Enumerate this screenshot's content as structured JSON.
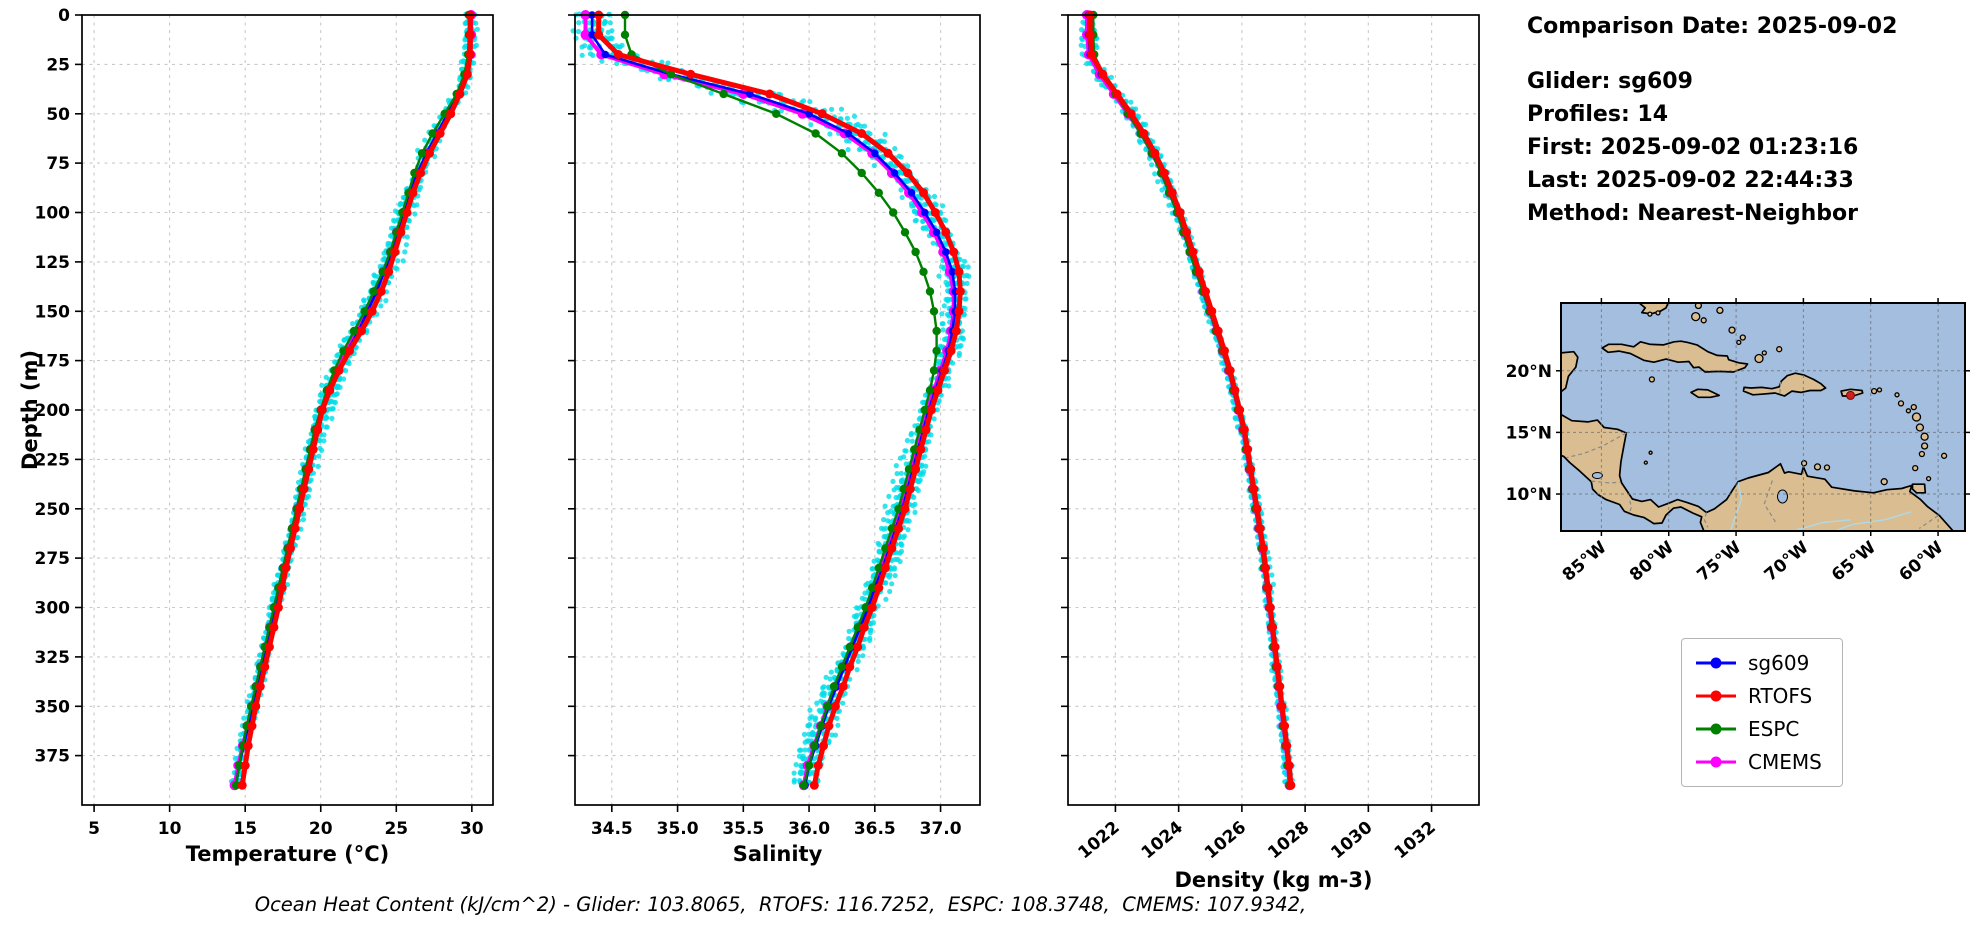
{
  "info_panel": {
    "comparison_date": "Comparison Date: 2025-09-02",
    "glider": "Glider: sg609",
    "profiles": "Profiles: 14",
    "first": "First: 2025-09-02 01:23:16",
    "last": "Last: 2025-09-02 22:44:33",
    "method": "Method: Nearest-Neighbor"
  },
  "caption": {
    "text": "Ocean Heat Content (kJ/cm^2) - Glider: 103.8065,  RTOFS: 116.7252,  ESPC: 108.3748,  CMEMS: 107.9342,"
  },
  "legend": {
    "items": [
      {
        "label": "sg609",
        "color": "#0000ff"
      },
      {
        "label": "RTOFS",
        "color": "#ff0000"
      },
      {
        "label": "ESPC",
        "color": "#008000"
      },
      {
        "label": "CMEMS",
        "color": "#ff00ff"
      }
    ]
  },
  "map": {
    "extent": {
      "lon": [
        -88,
        -58
      ],
      "lat": [
        7,
        25.5
      ]
    },
    "lat_ticks": [
      {
        "value": 20,
        "label": "20°N"
      },
      {
        "value": 15,
        "label": "15°N"
      },
      {
        "value": 10,
        "label": "10°N"
      }
    ],
    "lon_ticks": [
      {
        "value": -85,
        "label": "85°W"
      },
      {
        "value": -80,
        "label": "80°W"
      },
      {
        "value": -75,
        "label": "75°W"
      },
      {
        "value": -70,
        "label": "70°W"
      },
      {
        "value": -65,
        "label": "65°W"
      },
      {
        "value": -60,
        "label": "60°W"
      }
    ],
    "colors": {
      "ocean": "#a3bedf",
      "land": "#dabe92",
      "coast": "#000000",
      "grid": "#6e6e6e"
    },
    "marker": {
      "lon": -66.5,
      "lat": 18.0,
      "color": "#cc2222"
    }
  },
  "chart_data": {
    "type": "line",
    "orientation": "depth-profile",
    "ylabel": "Depth (m)",
    "ylim": [
      0,
      400
    ],
    "depth_ticks": [
      0,
      25,
      50,
      75,
      100,
      125,
      150,
      175,
      200,
      225,
      250,
      275,
      300,
      325,
      350,
      375
    ],
    "depths": [
      0,
      10,
      20,
      30,
      40,
      50,
      60,
      70,
      80,
      90,
      100,
      110,
      120,
      130,
      140,
      150,
      160,
      170,
      180,
      190,
      200,
      210,
      220,
      230,
      240,
      250,
      260,
      270,
      280,
      290,
      300,
      310,
      320,
      330,
      340,
      350,
      360,
      370,
      380,
      390
    ],
    "panels": [
      {
        "id": "temperature",
        "xlabel": "Temperature (°C)",
        "xlim": [
          4.2,
          31.4
        ],
        "x_ticks": [
          5,
          10,
          15,
          20,
          25,
          30
        ],
        "tick_labels": [
          "5",
          "10",
          "15",
          "20",
          "25",
          "30"
        ],
        "rotate_ticks": false,
        "scatter": {
          "color": "#00dde8",
          "amplitude": 0.55,
          "peak_depth": 130,
          "peak_width": 90,
          "peak_gain": 0.9
        },
        "series": [
          {
            "name": "sg609",
            "color": "#0000ff",
            "lw": 2.6,
            "ms": 3.8,
            "values": [
              29.9,
              29.9,
              29.85,
              29.6,
              29.1,
              28.4,
              27.7,
              27.0,
              26.4,
              25.9,
              25.5,
              25.1,
              24.7,
              24.2,
              23.7,
              23.1,
              22.5,
              21.8,
              21.2,
              20.6,
              20.1,
              19.7,
              19.4,
              19.1,
              18.8,
              18.5,
              18.2,
              17.9,
              17.6,
              17.3,
              17.0,
              16.7,
              16.4,
              16.1,
              15.8,
              15.5,
              15.2,
              14.9,
              14.6,
              14.4
            ]
          },
          {
            "name": "RTOFS",
            "color": "#ff0000",
            "lw": 5,
            "ms": 4.5,
            "values": [
              29.9,
              29.9,
              29.9,
              29.7,
              29.2,
              28.6,
              27.9,
              27.2,
              26.6,
              26.1,
              25.7,
              25.3,
              24.9,
              24.5,
              24.0,
              23.4,
              22.7,
              21.9,
              21.2,
              20.6,
              20.1,
              19.8,
              19.5,
              19.2,
              18.9,
              18.6,
              18.3,
              18.0,
              17.7,
              17.45,
              17.2,
              16.9,
              16.6,
              16.3,
              16.0,
              15.7,
              15.45,
              15.2,
              15.0,
              14.8
            ]
          },
          {
            "name": "ESPC",
            "color": "#008000",
            "lw": 2.4,
            "ms": 4.2,
            "values": [
              29.8,
              29.8,
              29.75,
              29.5,
              29.0,
              28.2,
              27.4,
              26.7,
              26.2,
              25.8,
              25.4,
              25.0,
              24.6,
              24.1,
              23.5,
              22.9,
              22.2,
              21.5,
              20.9,
              20.4,
              20.0,
              19.6,
              19.3,
              19.0,
              18.7,
              18.4,
              18.1,
              17.8,
              17.5,
              17.2,
              16.9,
              16.6,
              16.3,
              16.0,
              15.7,
              15.4,
              15.1,
              14.85,
              14.6,
              14.4
            ]
          },
          {
            "name": "CMEMS",
            "color": "#ff00ff",
            "lw": 4,
            "ms": 5,
            "values": [
              29.95,
              29.95,
              29.9,
              29.65,
              29.15,
              28.45,
              27.75,
              27.05,
              26.45,
              25.95,
              25.5,
              25.05,
              24.65,
              24.15,
              23.65,
              23.05,
              22.4,
              21.7,
              21.1,
              20.5,
              20.05,
              19.65,
              19.35,
              19.05,
              18.75,
              18.45,
              18.15,
              17.85,
              17.55,
              17.25,
              16.95,
              16.65,
              16.35,
              16.05,
              15.75,
              15.45,
              15.15,
              14.85,
              14.55,
              14.3
            ]
          }
        ]
      },
      {
        "id": "salinity",
        "xlabel": "Salinity",
        "xlim": [
          34.22,
          37.3
        ],
        "x_ticks": [
          34.5,
          35.0,
          35.5,
          36.0,
          36.5,
          37.0
        ],
        "tick_labels": [
          "34.5",
          "35.0",
          "35.5",
          "36.0",
          "36.5",
          "37.0"
        ],
        "rotate_ticks": false,
        "scatter": {
          "color": "#00dde8",
          "amplitude": 0.16,
          "peak_depth": 40,
          "peak_width": 28,
          "peak_gain": 2.6
        },
        "series": [
          {
            "name": "sg609",
            "color": "#0000ff",
            "lw": 2.6,
            "ms": 3.8,
            "values": [
              34.35,
              34.35,
              34.45,
              34.95,
              35.55,
              36.0,
              36.3,
              36.5,
              36.65,
              36.78,
              36.88,
              36.97,
              37.04,
              37.09,
              37.11,
              37.11,
              37.09,
              37.06,
              37.01,
              36.96,
              36.91,
              36.87,
              36.83,
              36.79,
              36.75,
              36.71,
              36.66,
              36.61,
              36.56,
              36.5,
              36.45,
              36.39,
              36.33,
              36.27,
              36.21,
              36.15,
              36.1,
              36.05,
              36.0,
              35.97
            ]
          },
          {
            "name": "RTOFS",
            "color": "#ff0000",
            "lw": 5,
            "ms": 4.5,
            "values": [
              34.4,
              34.4,
              34.55,
              35.1,
              35.7,
              36.1,
              36.4,
              36.6,
              36.75,
              36.87,
              36.96,
              37.04,
              37.1,
              37.14,
              37.15,
              37.14,
              37.12,
              37.08,
              37.03,
              36.98,
              36.93,
              36.89,
              36.85,
              36.81,
              36.77,
              36.73,
              36.68,
              36.63,
              36.58,
              36.53,
              36.48,
              36.42,
              36.37,
              36.31,
              36.26,
              36.2,
              36.15,
              36.11,
              36.07,
              36.04
            ]
          },
          {
            "name": "ESPC",
            "color": "#008000",
            "lw": 2.4,
            "ms": 4.2,
            "values": [
              34.6,
              34.6,
              34.65,
              34.95,
              35.35,
              35.75,
              36.05,
              36.25,
              36.4,
              36.53,
              36.64,
              36.73,
              36.81,
              36.87,
              36.92,
              36.95,
              36.97,
              36.97,
              36.95,
              36.92,
              36.88,
              36.84,
              36.8,
              36.76,
              36.72,
              36.68,
              36.63,
              36.58,
              36.53,
              36.48,
              36.43,
              36.37,
              36.31,
              36.25,
              36.19,
              36.14,
              36.09,
              36.04,
              36.0,
              35.96
            ]
          },
          {
            "name": "CMEMS",
            "color": "#ff00ff",
            "lw": 4,
            "ms": 5,
            "values": [
              34.3,
              34.3,
              34.42,
              34.9,
              35.5,
              35.95,
              36.27,
              36.48,
              36.63,
              36.76,
              36.86,
              36.95,
              37.02,
              37.07,
              37.1,
              37.1,
              37.08,
              37.05,
              37.0,
              36.95,
              36.9,
              36.86,
              36.82,
              36.78,
              36.74,
              36.7,
              36.65,
              36.6,
              36.55,
              36.49,
              36.44,
              36.38,
              36.32,
              36.26,
              36.2,
              36.14,
              36.09,
              36.04,
              35.99,
              35.96
            ]
          }
        ]
      },
      {
        "id": "density",
        "xlabel": "Density (kg m-3)",
        "xlim": [
          1020.5,
          1033.5
        ],
        "x_ticks": [
          1022,
          1024,
          1026,
          1028,
          1030,
          1032
        ],
        "tick_labels": [
          "1022",
          "1024",
          "1026",
          "1028",
          "1030",
          "1032"
        ],
        "rotate_ticks": true,
        "scatter": {
          "color": "#00dde8",
          "amplitude": 0.2,
          "peak_depth": 45,
          "peak_width": 40,
          "peak_gain": 1.2
        },
        "series": [
          {
            "name": "sg609",
            "color": "#0000ff",
            "lw": 2.6,
            "ms": 3.8,
            "values": [
              1021.15,
              1021.15,
              1021.2,
              1021.55,
              1022.0,
              1022.45,
              1022.85,
              1023.2,
              1023.5,
              1023.75,
              1024.0,
              1024.2,
              1024.4,
              1024.6,
              1024.8,
              1025.0,
              1025.2,
              1025.4,
              1025.6,
              1025.75,
              1025.9,
              1026.05,
              1026.15,
              1026.25,
              1026.35,
              1026.45,
              1026.55,
              1026.65,
              1026.72,
              1026.8,
              1026.88,
              1026.95,
              1027.02,
              1027.1,
              1027.17,
              1027.25,
              1027.32,
              1027.4,
              1027.47,
              1027.52
            ]
          },
          {
            "name": "RTOFS",
            "color": "#ff0000",
            "lw": 5,
            "ms": 4.5,
            "values": [
              1021.2,
              1021.2,
              1021.25,
              1021.6,
              1022.05,
              1022.5,
              1022.9,
              1023.25,
              1023.55,
              1023.8,
              1024.05,
              1024.25,
              1024.45,
              1024.65,
              1024.85,
              1025.05,
              1025.25,
              1025.45,
              1025.63,
              1025.78,
              1025.93,
              1026.08,
              1026.18,
              1026.28,
              1026.38,
              1026.48,
              1026.58,
              1026.68,
              1026.75,
              1026.83,
              1026.9,
              1026.97,
              1027.05,
              1027.12,
              1027.2,
              1027.27,
              1027.35,
              1027.42,
              1027.5,
              1027.55
            ]
          },
          {
            "name": "ESPC",
            "color": "#008000",
            "lw": 2.4,
            "ms": 4.2,
            "values": [
              1021.3,
              1021.3,
              1021.33,
              1021.6,
              1022.0,
              1022.4,
              1022.8,
              1023.15,
              1023.45,
              1023.7,
              1023.95,
              1024.15,
              1024.35,
              1024.55,
              1024.77,
              1024.98,
              1025.18,
              1025.38,
              1025.58,
              1025.73,
              1025.88,
              1026.03,
              1026.13,
              1026.23,
              1026.33,
              1026.43,
              1026.53,
              1026.63,
              1026.7,
              1026.78,
              1026.86,
              1026.93,
              1027.0,
              1027.08,
              1027.15,
              1027.23,
              1027.3,
              1027.38,
              1027.45,
              1027.5
            ]
          },
          {
            "name": "CMEMS",
            "color": "#ff00ff",
            "lw": 4,
            "ms": 5,
            "values": [
              1021.1,
              1021.1,
              1021.16,
              1021.5,
              1021.95,
              1022.4,
              1022.82,
              1023.17,
              1023.47,
              1023.72,
              1023.97,
              1024.17,
              1024.37,
              1024.57,
              1024.78,
              1024.99,
              1025.19,
              1025.39,
              1025.59,
              1025.74,
              1025.89,
              1026.04,
              1026.14,
              1026.24,
              1026.34,
              1026.44,
              1026.54,
              1026.64,
              1026.71,
              1026.79,
              1026.87,
              1026.94,
              1027.01,
              1027.09,
              1027.16,
              1027.24,
              1027.31,
              1027.39,
              1027.46,
              1027.51
            ]
          }
        ]
      }
    ]
  }
}
